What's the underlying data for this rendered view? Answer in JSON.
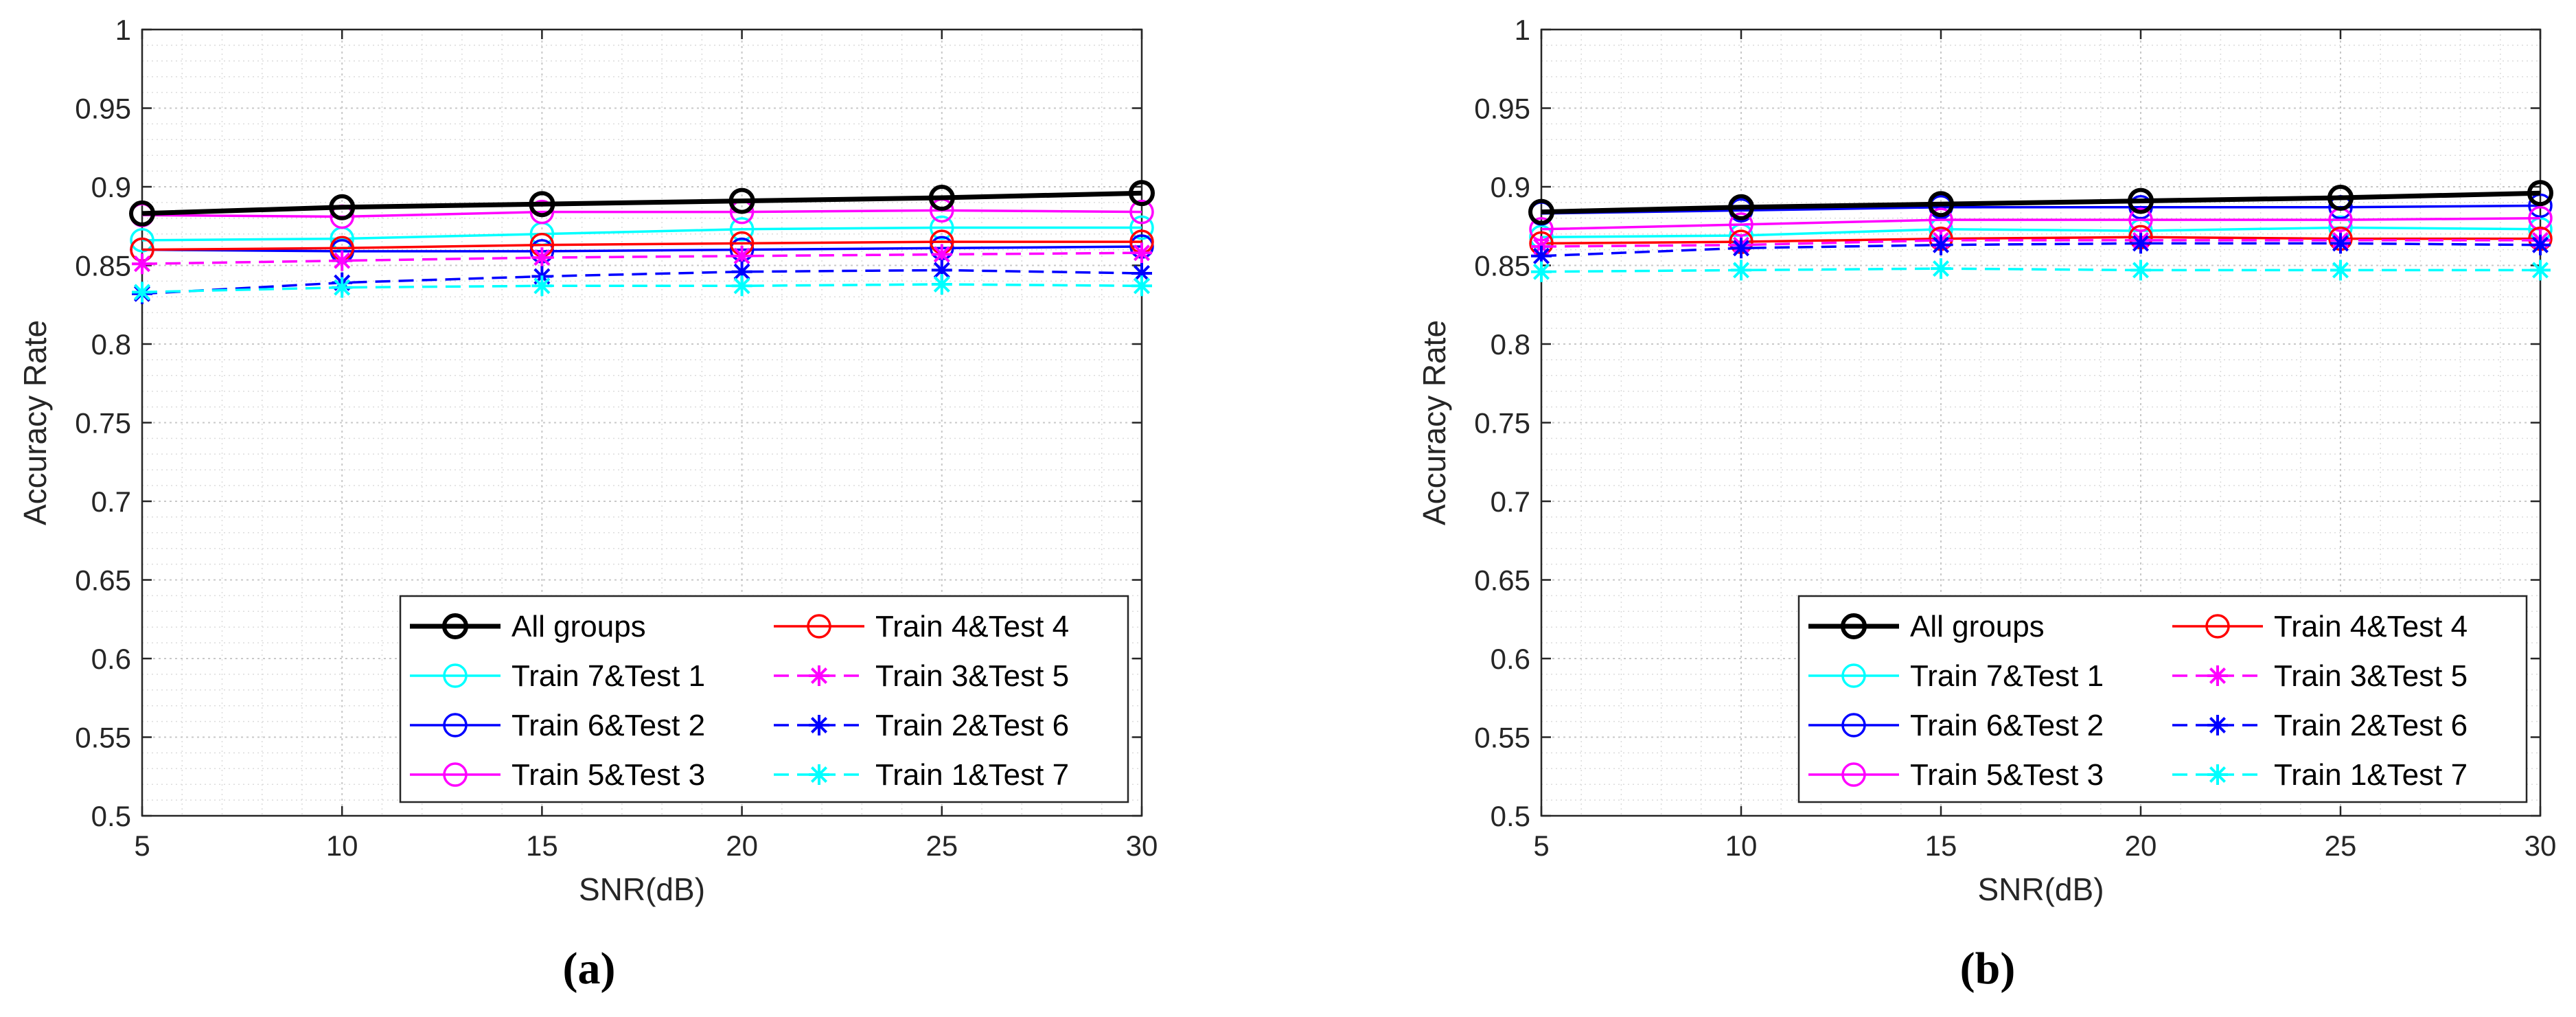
{
  "chart_data": [
    {
      "type": "line",
      "panel_label": "(a)",
      "title": "",
      "xlabel": "SNR(dB)",
      "ylabel": "Accuracy Rate",
      "xlim": [
        5,
        30
      ],
      "ylim": [
        0.5,
        1
      ],
      "xticks": [
        "5",
        "10",
        "15",
        "20",
        "25",
        "30"
      ],
      "yticks": [
        "0.5",
        "0.55",
        "0.6",
        "0.65",
        "0.7",
        "0.75",
        "0.8",
        "0.85",
        "0.9",
        "0.95",
        "1"
      ],
      "grid": true,
      "legend_position": "bottom-right",
      "x": [
        5,
        10,
        15,
        20,
        25,
        30
      ],
      "series": [
        {
          "name": "All groups",
          "color": "#000000",
          "dash": "solid",
          "marker": "circle",
          "bold": true,
          "values": [
            0.883,
            0.887,
            0.889,
            0.891,
            0.893,
            0.896
          ]
        },
        {
          "name": "Train 7&Test 1",
          "color": "#00ffff",
          "dash": "solid",
          "marker": "circle",
          "bold": false,
          "values": [
            0.866,
            0.867,
            0.87,
            0.873,
            0.874,
            0.874
          ]
        },
        {
          "name": "Train 6&Test 2",
          "color": "#0000ff",
          "dash": "solid",
          "marker": "circle",
          "bold": false,
          "values": [
            0.86,
            0.859,
            0.859,
            0.86,
            0.861,
            0.862
          ]
        },
        {
          "name": "Train 5&Test 3",
          "color": "#ff00ff",
          "dash": "solid",
          "marker": "circle",
          "bold": false,
          "values": [
            0.882,
            0.881,
            0.884,
            0.884,
            0.885,
            0.884
          ]
        },
        {
          "name": "Train 4&Test 4",
          "color": "#ff0000",
          "dash": "solid",
          "marker": "circle",
          "bold": false,
          "values": [
            0.86,
            0.861,
            0.863,
            0.864,
            0.865,
            0.865
          ]
        },
        {
          "name": "Train 3&Test 5",
          "color": "#ff00ff",
          "dash": "dashed",
          "marker": "star",
          "bold": false,
          "values": [
            0.851,
            0.853,
            0.855,
            0.856,
            0.857,
            0.858
          ]
        },
        {
          "name": "Train 2&Test 6",
          "color": "#0000ff",
          "dash": "dashed",
          "marker": "star",
          "bold": false,
          "values": [
            0.832,
            0.839,
            0.843,
            0.846,
            0.847,
            0.845
          ]
        },
        {
          "name": "Train 1&Test 7",
          "color": "#00ffff",
          "dash": "dashed",
          "marker": "star",
          "bold": false,
          "values": [
            0.833,
            0.836,
            0.837,
            0.837,
            0.838,
            0.837
          ]
        }
      ]
    },
    {
      "type": "line",
      "panel_label": "(b)",
      "title": "",
      "xlabel": "SNR(dB)",
      "ylabel": "Accuracy Rate",
      "xlim": [
        5,
        30
      ],
      "ylim": [
        0.5,
        1
      ],
      "xticks": [
        "5",
        "10",
        "15",
        "20",
        "25",
        "30"
      ],
      "yticks": [
        "0.5",
        "0.55",
        "0.6",
        "0.65",
        "0.7",
        "0.75",
        "0.8",
        "0.85",
        "0.9",
        "0.95",
        "1"
      ],
      "grid": true,
      "legend_position": "bottom-right",
      "x": [
        5,
        10,
        15,
        20,
        25,
        30
      ],
      "series": [
        {
          "name": "All groups",
          "color": "#000000",
          "dash": "solid",
          "marker": "circle",
          "bold": true,
          "values": [
            0.884,
            0.887,
            0.889,
            0.891,
            0.893,
            0.896
          ]
        },
        {
          "name": "Train 7&Test 1",
          "color": "#00ffff",
          "dash": "solid",
          "marker": "circle",
          "bold": false,
          "values": [
            0.868,
            0.869,
            0.873,
            0.872,
            0.874,
            0.873
          ]
        },
        {
          "name": "Train 6&Test 2",
          "color": "#0000ff",
          "dash": "solid",
          "marker": "circle",
          "bold": false,
          "values": [
            0.883,
            0.885,
            0.887,
            0.887,
            0.887,
            0.888
          ]
        },
        {
          "name": "Train 5&Test 3",
          "color": "#ff00ff",
          "dash": "solid",
          "marker": "circle",
          "bold": false,
          "values": [
            0.873,
            0.876,
            0.879,
            0.879,
            0.879,
            0.88
          ]
        },
        {
          "name": "Train 4&Test 4",
          "color": "#ff0000",
          "dash": "solid",
          "marker": "circle",
          "bold": false,
          "values": [
            0.864,
            0.865,
            0.867,
            0.868,
            0.867,
            0.867
          ]
        },
        {
          "name": "Train 3&Test 5",
          "color": "#ff00ff",
          "dash": "dashed",
          "marker": "star",
          "bold": false,
          "values": [
            0.862,
            0.863,
            0.866,
            0.866,
            0.866,
            0.866
          ]
        },
        {
          "name": "Train 2&Test 6",
          "color": "#0000ff",
          "dash": "dashed",
          "marker": "star",
          "bold": false,
          "values": [
            0.856,
            0.861,
            0.863,
            0.864,
            0.864,
            0.863
          ]
        },
        {
          "name": "Train 1&Test 7",
          "color": "#00ffff",
          "dash": "dashed",
          "marker": "star",
          "bold": false,
          "values": [
            0.846,
            0.847,
            0.848,
            0.847,
            0.847,
            0.847
          ]
        }
      ]
    }
  ]
}
